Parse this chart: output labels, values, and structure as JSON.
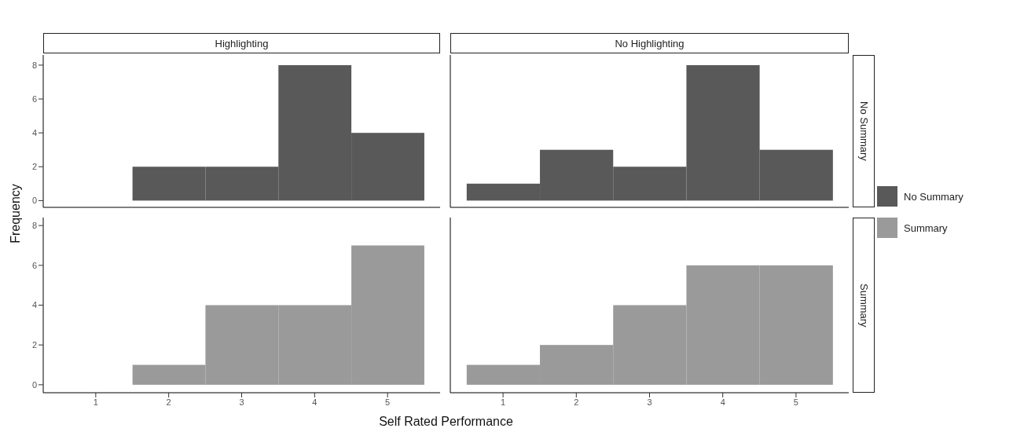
{
  "chart_data": [
    {
      "type": "histogram",
      "title": "Highlighting",
      "ylabel": "Frequency",
      "bins": [
        0.5,
        1.5,
        2.5,
        3.5,
        4.5,
        5.5
      ],
      "xlim": [
        0.28,
        5.72
      ],
      "ylim": [
        -0.4,
        8.6
      ],
      "xticks": [
        1,
        2,
        3,
        4,
        5
      ],
      "yticks": [
        0,
        2,
        4,
        6,
        8
      ],
      "tick_labels": "y",
      "series": [
        {
          "color": "#595959",
          "values": [
            0,
            2,
            2,
            8,
            4
          ]
        }
      ]
    },
    {
      "type": "histogram",
      "title": "No Highlighting",
      "y2label": "No Summary",
      "legend": "right",
      "bins": [
        0.5,
        1.5,
        2.5,
        3.5,
        4.5,
        5.5
      ],
      "xlim": [
        0.28,
        5.72
      ],
      "ylim": [
        -0.4,
        8.6
      ],
      "tick_labels": false,
      "series": [
        {
          "name": "No Summary",
          "color": "#595959",
          "values": [
            1,
            3,
            2,
            8,
            3
          ]
        }
      ]
    },
    {
      "type": "histogram",
      "xlabel": "Self Rated Performance",
      "bins": [
        0.5,
        1.5,
        2.5,
        3.5,
        4.5,
        5.5
      ],
      "xlim": [
        0.28,
        5.72
      ],
      "ylim": [
        -0.4,
        8.4
      ],
      "xticks": [
        1,
        2,
        3,
        4,
        5
      ],
      "yticks": [
        0,
        2,
        4,
        6,
        8
      ],
      "series": [
        {
          "color": "#9a9a9a",
          "values": [
            0,
            1,
            4,
            4,
            7
          ]
        }
      ]
    },
    {
      "type": "histogram",
      "y2label": "Summary",
      "legend": "right",
      "bins": [
        0.5,
        1.5,
        2.5,
        3.5,
        4.5,
        5.5
      ],
      "xlim": [
        0.28,
        5.72
      ],
      "ylim": [
        -0.4,
        8.4
      ],
      "xticks": [
        1,
        2,
        3,
        4,
        5
      ],
      "tick_labels": "x",
      "series": [
        {
          "name": "Summary",
          "color": "#9a9a9a",
          "values": [
            1,
            2,
            4,
            6,
            6
          ]
        }
      ]
    }
  ]
}
